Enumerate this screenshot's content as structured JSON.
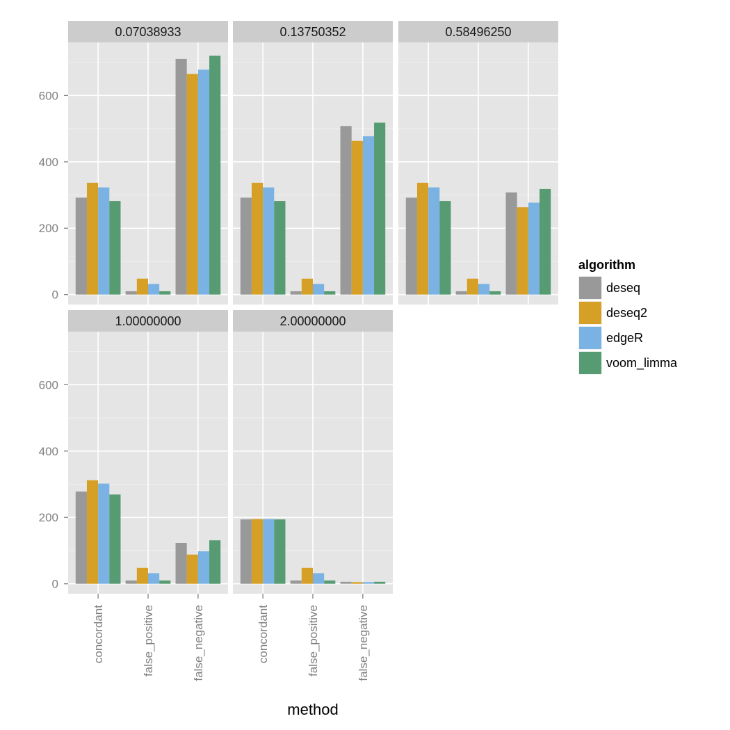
{
  "chart_data": {
    "type": "bar",
    "facet_variable": "threshold",
    "xlabel": "method",
    "ylabel": "",
    "ylim": [
      -30,
      760
    ],
    "y_ticks": [
      0,
      200,
      400,
      600
    ],
    "categories": [
      "concordant",
      "false_positive",
      "false_negative"
    ],
    "legend": {
      "title": "algorithm",
      "position": "right",
      "series": [
        {
          "name": "deseq",
          "color": "#999999"
        },
        {
          "name": "deseq2",
          "color": "#D69F25"
        },
        {
          "name": "edgeR",
          "color": "#7AB2E3"
        },
        {
          "name": "voom_limma",
          "color": "#569B71"
        }
      ]
    },
    "panels": [
      {
        "title": "0.07038933",
        "series": [
          {
            "name": "deseq",
            "values": [
              292,
              10,
              710
            ]
          },
          {
            "name": "deseq2",
            "values": [
              337,
              48,
              665
            ]
          },
          {
            "name": "edgeR",
            "values": [
              323,
              32,
              678
            ]
          },
          {
            "name": "voom_limma",
            "values": [
              282,
              10,
              720
            ]
          }
        ]
      },
      {
        "title": "0.13750352",
        "series": [
          {
            "name": "deseq",
            "values": [
              292,
              10,
              508
            ]
          },
          {
            "name": "deseq2",
            "values": [
              337,
              48,
              463
            ]
          },
          {
            "name": "edgeR",
            "values": [
              323,
              32,
              477
            ]
          },
          {
            "name": "voom_limma",
            "values": [
              282,
              10,
              518
            ]
          }
        ]
      },
      {
        "title": "0.58496250",
        "series": [
          {
            "name": "deseq",
            "values": [
              292,
              10,
              308
            ]
          },
          {
            "name": "deseq2",
            "values": [
              337,
              48,
              263
            ]
          },
          {
            "name": "edgeR",
            "values": [
              323,
              32,
              277
            ]
          },
          {
            "name": "voom_limma",
            "values": [
              282,
              10,
              318
            ]
          }
        ]
      },
      {
        "title": "1.00000000",
        "series": [
          {
            "name": "deseq",
            "values": [
              278,
              10,
              123
            ]
          },
          {
            "name": "deseq2",
            "values": [
              312,
              48,
              88
            ]
          },
          {
            "name": "edgeR",
            "values": [
              302,
              32,
              98
            ]
          },
          {
            "name": "voom_limma",
            "values": [
              269,
              10,
              131
            ]
          }
        ]
      },
      {
        "title": "2.00000000",
        "series": [
          {
            "name": "deseq",
            "values": [
              194,
              10,
              6
            ]
          },
          {
            "name": "deseq2",
            "values": [
              195,
              48,
              5
            ]
          },
          {
            "name": "edgeR",
            "values": [
              195,
              32,
              5
            ]
          },
          {
            "name": "voom_limma",
            "values": [
              194,
              10,
              6
            ]
          }
        ]
      }
    ]
  }
}
